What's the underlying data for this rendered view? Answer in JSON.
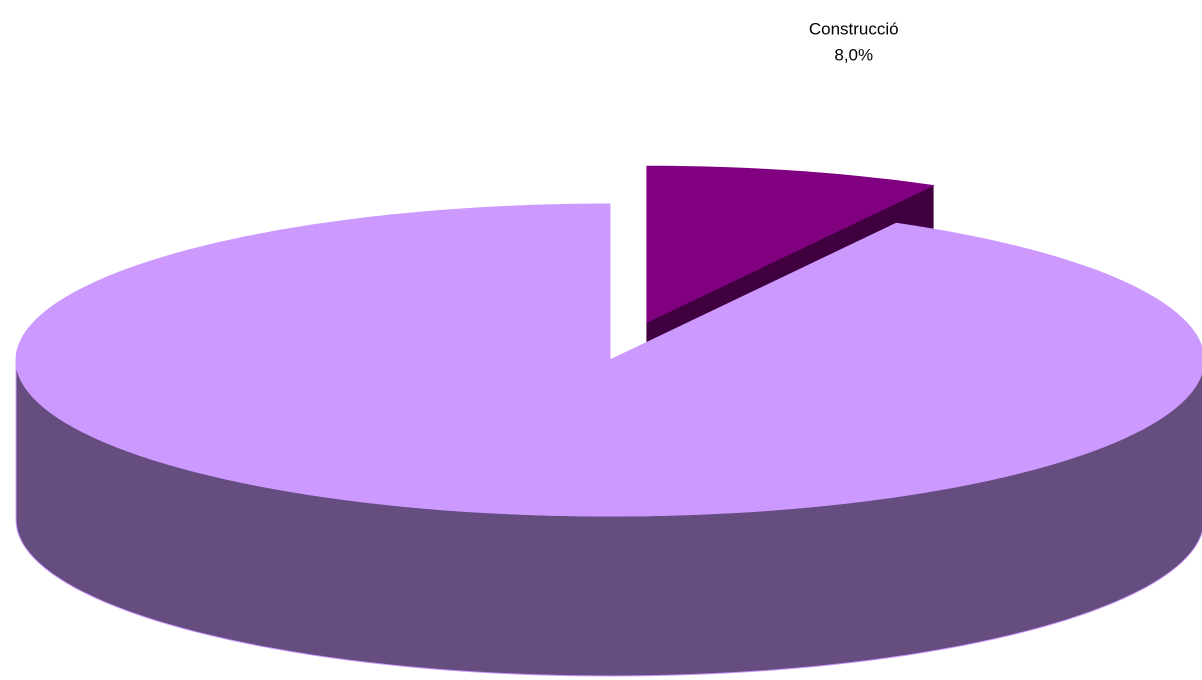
{
  "chart_data": {
    "type": "pie",
    "categories": [
      "Construcció",
      null
    ],
    "values": [
      8,
      92
    ],
    "value_labels": [
      "8,0%",
      null
    ],
    "colors": [
      "#800080",
      "#cc99ff"
    ],
    "side_colors": [
      "#400040",
      "#664d80"
    ],
    "explode": [
      true,
      false
    ],
    "three_d": true
  }
}
